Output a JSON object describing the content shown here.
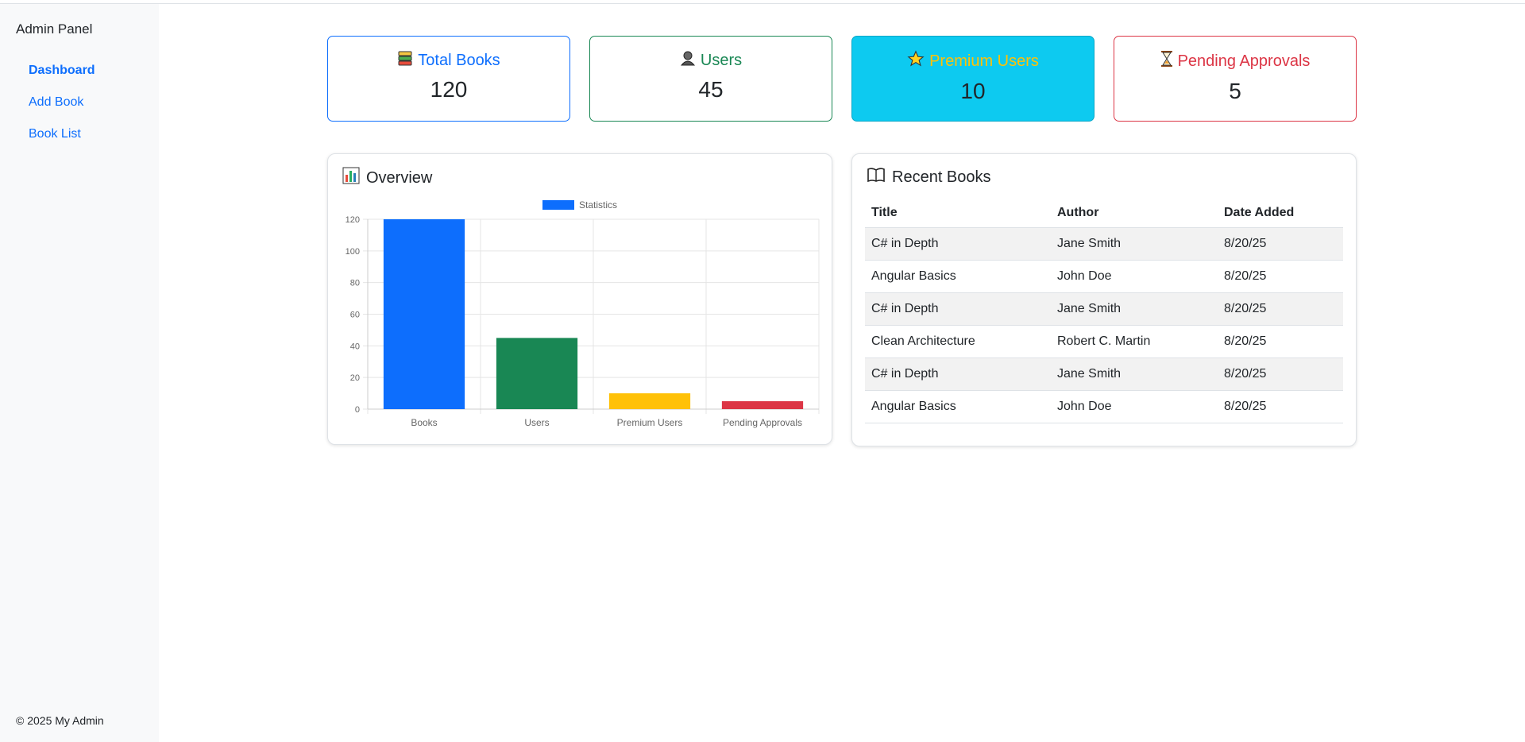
{
  "sidebar": {
    "brand": "Admin Panel",
    "items": [
      {
        "label": "Dashboard",
        "active": true
      },
      {
        "label": "Add Book",
        "active": false
      },
      {
        "label": "Book List",
        "active": false
      }
    ],
    "footer": "© 2025 My Admin"
  },
  "stats": [
    {
      "label": "Total Books",
      "value": "120",
      "icon": "books-icon",
      "color": "#0d6efd"
    },
    {
      "label": "Users",
      "value": "45",
      "icon": "user-icon",
      "color": "#198754"
    },
    {
      "label": "Premium Users",
      "value": "10",
      "icon": "star-icon",
      "color": "#ffc107"
    },
    {
      "label": "Pending Approvals",
      "value": "5",
      "icon": "hourglass-icon",
      "color": "#dc3545"
    }
  ],
  "overview": {
    "title": "Overview",
    "icon": "bar-chart-icon"
  },
  "chart_data": {
    "type": "bar",
    "categories": [
      "Books",
      "Users",
      "Premium Users",
      "Pending Approvals"
    ],
    "series": [
      {
        "name": "Statistics",
        "values": [
          120,
          45,
          10,
          5
        ]
      }
    ],
    "colors": [
      "#0d6efd",
      "#198754",
      "#ffc107",
      "#dc3545"
    ],
    "ylim": [
      0,
      120
    ],
    "yticks": [
      0,
      20,
      40,
      60,
      80,
      100,
      120
    ],
    "grid": true,
    "legend": "top"
  },
  "recent": {
    "title": "Recent Books",
    "icon": "open-book-icon",
    "columns": [
      "Title",
      "Author",
      "Date Added"
    ],
    "rows": [
      [
        "C# in Depth",
        "Jane Smith",
        "8/20/25"
      ],
      [
        "Angular Basics",
        "John Doe",
        "8/20/25"
      ],
      [
        "C# in Depth",
        "Jane Smith",
        "8/20/25"
      ],
      [
        "Clean Architecture",
        "Robert C. Martin",
        "8/20/25"
      ],
      [
        "C# in Depth",
        "Jane Smith",
        "8/20/25"
      ],
      [
        "Angular Basics",
        "John Doe",
        "8/20/25"
      ]
    ]
  }
}
